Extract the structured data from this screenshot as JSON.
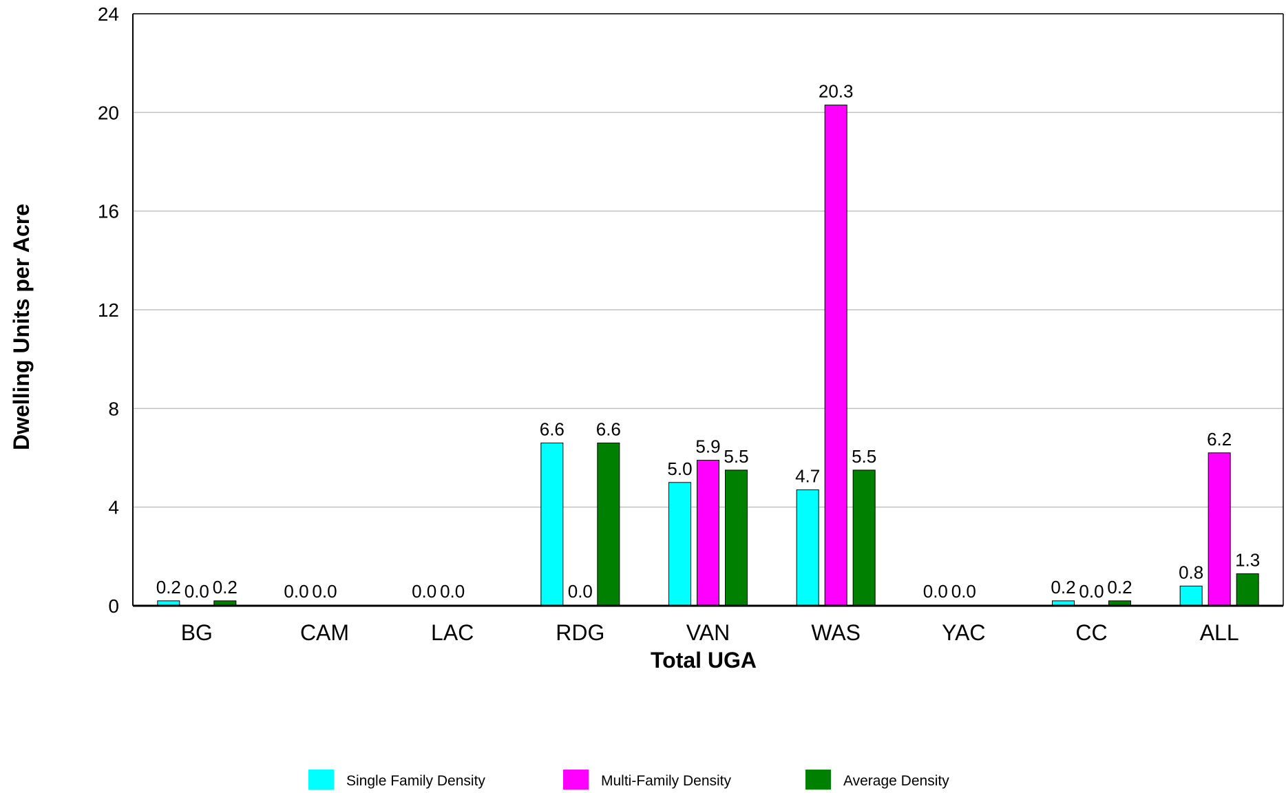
{
  "chart_data": {
    "type": "bar",
    "title": "",
    "xlabel": "Total UGA",
    "ylabel": "Dwelling Units per Acre",
    "ylim": [
      0,
      24
    ],
    "yticks": [
      0,
      4,
      8,
      12,
      16,
      20,
      24
    ],
    "grid": true,
    "legend_position": "bottom",
    "categories": [
      "BG",
      "CAM",
      "LAC",
      "RDG",
      "VAN",
      "WAS",
      "YAC",
      "CC",
      "ALL"
    ],
    "series": [
      {
        "name": "Single Family Density",
        "color": "#00ffff",
        "values": [
          0.2,
          0.0,
          0.0,
          6.6,
          5.0,
          4.7,
          0.0,
          0.2,
          0.8
        ],
        "labels": [
          "0.2",
          "0.0",
          "0.0",
          "6.6",
          "5.0",
          "4.7",
          "0.0",
          "0.2",
          "0.8"
        ]
      },
      {
        "name": "Multi-Family Density",
        "color": "#ff00ff",
        "values": [
          0.0,
          0.0,
          0.0,
          0.0,
          5.9,
          20.3,
          0.0,
          0.0,
          6.2
        ],
        "labels": [
          "0.0",
          "0.0",
          "0.0",
          "0.0",
          "5.9",
          "20.3",
          "0.0",
          "0.0",
          "6.2"
        ]
      },
      {
        "name": "Average Density",
        "color": "#008000",
        "values": [
          0.2,
          null,
          null,
          6.6,
          5.5,
          5.5,
          null,
          0.2,
          1.3
        ],
        "labels": [
          "0.2",
          "",
          "",
          "6.6",
          "5.5",
          "5.5",
          "",
          "0.2",
          "1.3"
        ]
      }
    ]
  }
}
